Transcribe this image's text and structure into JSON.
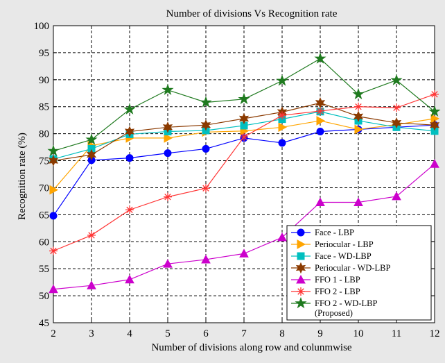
{
  "chart_data": {
    "type": "line",
    "title": "Number of divisions Vs Recognition rate",
    "xlabel": "Number of divisions along row and colunmwise",
    "ylabel": "Recognition rate (%)",
    "x": [
      2,
      3,
      4,
      5,
      6,
      7,
      8,
      9,
      10,
      11,
      12
    ],
    "xlim": [
      2,
      12
    ],
    "ylim": [
      45,
      100
    ],
    "xticks": [
      "2",
      "3",
      "4",
      "5",
      "6",
      "7",
      "8",
      "9",
      "10",
      "11",
      "12"
    ],
    "yticks": [
      "45",
      "50",
      "55",
      "60",
      "65",
      "70",
      "75",
      "80",
      "85",
      "90",
      "95",
      "100"
    ],
    "grid": true,
    "legend_position": "bottom-right",
    "series": [
      {
        "name": "Face - LBP",
        "color": "#0000ff",
        "marker": "circle",
        "values": [
          64.8,
          75.1,
          75.5,
          76.4,
          77.2,
          79.2,
          78.3,
          80.4,
          80.8,
          81.2,
          81.6
        ]
      },
      {
        "name": "Periocular - LBP",
        "color": "#ffa500",
        "marker": "triangle-right",
        "values": [
          69.6,
          77.8,
          79.2,
          79.2,
          80.3,
          80.5,
          81.2,
          82.4,
          80.8,
          81.7,
          82.8
        ]
      },
      {
        "name": "Face - WD-LBP",
        "color": "#00bfbf",
        "marker": "square",
        "values": [
          75.3,
          77.2,
          79.9,
          80.4,
          80.6,
          81.5,
          82.7,
          84.1,
          82.4,
          81.2,
          80.5
        ]
      },
      {
        "name": "Periocular - WD-LBP",
        "color": "#8b3a00",
        "marker": "hexagram",
        "values": [
          75.0,
          76.1,
          80.4,
          81.2,
          81.6,
          82.8,
          84.0,
          85.7,
          83.2,
          82.0,
          81.6
        ]
      },
      {
        "name": "FFO 1 - LBP",
        "color": "#cc00cc",
        "marker": "triangle-up",
        "values": [
          51.2,
          51.9,
          53.0,
          55.9,
          56.7,
          57.8,
          60.8,
          67.3,
          67.3,
          68.4,
          74.4
        ]
      },
      {
        "name": "FFO 2 - LBP",
        "color": "#ff3333",
        "marker": "asterisk",
        "values": [
          58.3,
          61.2,
          65.9,
          68.3,
          69.9,
          79.4,
          83.4,
          84.2,
          85.0,
          84.8,
          87.3
        ]
      },
      {
        "name": "FFO 2 - WD-LBP",
        "name_line2": "(Proposed)",
        "color": "#1f7a1f",
        "marker": "pentagram",
        "values": [
          76.8,
          78.9,
          84.5,
          88.1,
          85.8,
          86.4,
          89.8,
          93.9,
          87.3,
          89.9,
          84.1
        ]
      }
    ]
  }
}
